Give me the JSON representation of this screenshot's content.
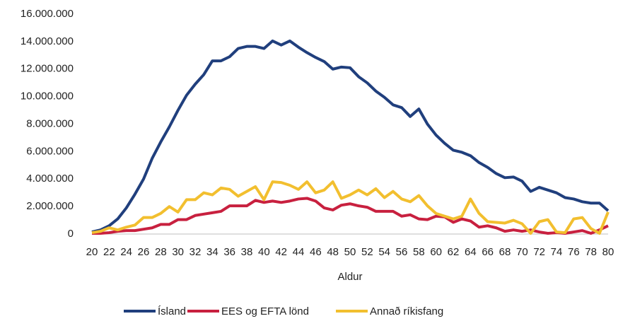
{
  "chart_data": {
    "type": "line",
    "x_label": "Aldur",
    "x": [
      20,
      21,
      22,
      23,
      24,
      25,
      26,
      27,
      28,
      29,
      30,
      31,
      32,
      33,
      34,
      35,
      36,
      37,
      38,
      39,
      40,
      41,
      42,
      43,
      44,
      45,
      46,
      47,
      48,
      49,
      50,
      51,
      52,
      53,
      54,
      55,
      56,
      57,
      58,
      59,
      60,
      61,
      62,
      63,
      64,
      65,
      66,
      67,
      68,
      69,
      70,
      71,
      72,
      73,
      74,
      75,
      76,
      77,
      78,
      79,
      80
    ],
    "xlim": [
      20,
      80
    ],
    "xticks": [
      20,
      22,
      24,
      26,
      28,
      30,
      32,
      34,
      36,
      38,
      40,
      42,
      44,
      46,
      48,
      50,
      52,
      54,
      56,
      58,
      60,
      62,
      64,
      66,
      68,
      70,
      72,
      74,
      76,
      78,
      80
    ],
    "ylim": [
      0,
      16000000
    ],
    "yticks": [
      0,
      {
        "value": 2000000,
        "label": "2.000.000"
      },
      {
        "value": 4000000,
        "label": "4.000.000"
      },
      {
        "value": 6000000,
        "label": "6.000.000"
      },
      {
        "value": 8000000,
        "label": "8.000.000"
      },
      {
        "value": 10000000,
        "label": "10.000.000"
      },
      {
        "value": 12000000,
        "label": "12.000.000"
      },
      {
        "value": 14000000,
        "label": "14.000.000"
      },
      {
        "value": 16000000,
        "label": "16.000.000"
      }
    ],
    "legend": "bottom",
    "series": [
      {
        "name": "Ísland",
        "color": "#203f7d",
        "values": [
          150000,
          300000,
          600000,
          1100000,
          1900000,
          2900000,
          4000000,
          5500000,
          6700000,
          7800000,
          9000000,
          10100000,
          10900000,
          11600000,
          12600000,
          12600000,
          12900000,
          13500000,
          13650000,
          13650000,
          13500000,
          14050000,
          13750000,
          14050000,
          13600000,
          13200000,
          12850000,
          12550000,
          12000000,
          12150000,
          12100000,
          11450000,
          11000000,
          10400000,
          9950000,
          9400000,
          9200000,
          8550000,
          9100000,
          8000000,
          7200000,
          6600000,
          6100000,
          5950000,
          5700000,
          5200000,
          4850000,
          4400000,
          4100000,
          4150000,
          3850000,
          3100000,
          3400000,
          3200000,
          3000000,
          2650000,
          2550000,
          2350000,
          2250000,
          2250000,
          1700000
        ]
      },
      {
        "name": "EES og EFTA lönd",
        "color": "#c8203f",
        "values": [
          50000,
          50000,
          100000,
          200000,
          250000,
          250000,
          350000,
          450000,
          700000,
          700000,
          1050000,
          1050000,
          1350000,
          1450000,
          1550000,
          1650000,
          2050000,
          2050000,
          2050000,
          2450000,
          2300000,
          2400000,
          2300000,
          2400000,
          2550000,
          2600000,
          2400000,
          1900000,
          1750000,
          2100000,
          2200000,
          2050000,
          1950000,
          1650000,
          1650000,
          1650000,
          1300000,
          1400000,
          1100000,
          1050000,
          1300000,
          1250000,
          850000,
          1100000,
          950000,
          500000,
          600000,
          450000,
          200000,
          300000,
          200000,
          300000,
          150000,
          50000,
          100000,
          50000,
          150000,
          250000,
          50000,
          300000,
          600000
        ]
      },
      {
        "name": "Annað ríkisfang",
        "color": "#f2bf2f",
        "values": [
          100000,
          200000,
          450000,
          300000,
          500000,
          650000,
          1200000,
          1200000,
          1500000,
          2000000,
          1600000,
          2500000,
          2500000,
          3000000,
          2850000,
          3350000,
          3250000,
          2750000,
          3100000,
          3450000,
          2500000,
          3800000,
          3750000,
          3550000,
          3250000,
          3800000,
          3000000,
          3200000,
          3800000,
          2600000,
          2850000,
          3200000,
          2850000,
          3300000,
          2650000,
          3100000,
          2550000,
          2350000,
          2800000,
          2050000,
          1500000,
          1300000,
          1100000,
          1300000,
          2550000,
          1500000,
          900000,
          850000,
          800000,
          1000000,
          750000,
          50000,
          900000,
          1050000,
          150000,
          100000,
          1100000,
          1200000,
          400000,
          50000,
          1600000
        ]
      }
    ]
  }
}
